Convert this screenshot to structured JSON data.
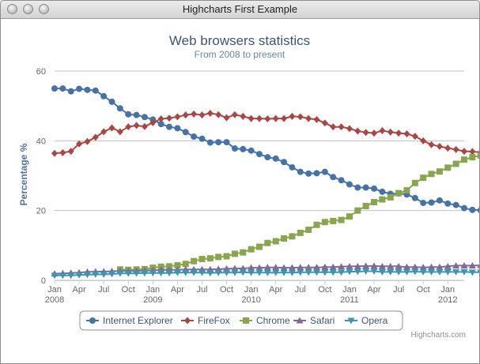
{
  "window": {
    "title": "Highcharts First Example"
  },
  "chart_data": {
    "type": "line",
    "title": "Web browsers statistics",
    "subtitle": "From 2008 to present",
    "xlabel": "",
    "ylabel": "Percentage %",
    "ylim": [
      0,
      60
    ],
    "yticks": [
      "0",
      "20",
      "40",
      "60"
    ],
    "x_tick_labels": [
      "Jan",
      "Apr",
      "Jul",
      "Oct",
      "Jan",
      "Apr",
      "Jul",
      "Oct",
      "Jan",
      "Apr",
      "Jul",
      "Oct",
      "Jan",
      "Apr",
      "Jul",
      "Oct",
      "Jan"
    ],
    "x_year_labels": [
      "2008",
      "2009",
      "2010",
      "2011",
      "2012"
    ],
    "x_start": "2008-01",
    "x_end": "2012-03",
    "grid": true,
    "legend_position": "bottom-center",
    "credits": "Highcharts.com",
    "series": [
      {
        "name": "Internet Explorer",
        "color": "#4572A7",
        "marker": "circle",
        "values": [
          55.0,
          55.0,
          54.2,
          54.9,
          54.6,
          54.4,
          52.8,
          51.2,
          49.3,
          47.6,
          47.4,
          46.8,
          46.1,
          44.8,
          44.0,
          43.6,
          42.5,
          41.2,
          40.6,
          39.5,
          39.6,
          39.6,
          37.8,
          37.6,
          37.2,
          36.2,
          35.3,
          34.9,
          33.9,
          32.4,
          31.1,
          30.6,
          30.7,
          31.1,
          29.6,
          28.7,
          27.5,
          26.6,
          26.6,
          26.3,
          25.4,
          24.8,
          24.9,
          24.6,
          23.6,
          22.2,
          22.3,
          22.9,
          22.0,
          21.6,
          20.7,
          20.2,
          20.1,
          19.6,
          19.1
        ]
      },
      {
        "name": "FireFox",
        "color": "#AA4643",
        "marker": "diamond",
        "values": [
          36.4,
          36.6,
          37.0,
          39.1,
          39.8,
          41.0,
          42.6,
          43.7,
          42.6,
          44.0,
          44.4,
          44.1,
          45.2,
          46.3,
          46.5,
          46.9,
          47.4,
          47.7,
          47.4,
          47.9,
          47.5,
          46.6,
          47.5,
          47.0,
          46.4,
          46.4,
          46.3,
          46.4,
          46.4,
          47.0,
          46.9,
          46.4,
          46.1,
          45.1,
          44.0,
          44.0,
          43.5,
          42.8,
          42.4,
          42.2,
          42.9,
          42.5,
          42.2,
          42.0,
          41.3,
          40.0,
          38.9,
          38.4,
          37.9,
          37.5,
          37.0,
          36.9,
          36.7,
          36.6,
          36.0
        ]
      },
      {
        "name": "Chrome",
        "color": "#89A54E",
        "marker": "square",
        "values": [
          null,
          null,
          null,
          null,
          null,
          null,
          null,
          null,
          3.1,
          3.0,
          3.1,
          3.2,
          3.6,
          3.9,
          4.0,
          4.3,
          4.7,
          5.5,
          6.1,
          6.3,
          6.7,
          6.9,
          7.6,
          8.0,
          8.9,
          9.6,
          10.7,
          11.2,
          12.0,
          12.6,
          13.6,
          14.5,
          15.9,
          16.7,
          17.0,
          17.3,
          18.3,
          20.0,
          21.3,
          22.4,
          23.2,
          23.8,
          25.0,
          25.8,
          27.9,
          29.4,
          30.5,
          31.2,
          32.3,
          33.4,
          34.6,
          35.3,
          35.8,
          36.5,
          37.2
        ]
      },
      {
        "name": "Safari",
        "color": "#80699B",
        "marker": "triangle",
        "values": [
          1.9,
          2.0,
          2.1,
          2.2,
          2.4,
          2.5,
          2.5,
          2.6,
          2.7,
          2.7,
          2.7,
          2.8,
          2.8,
          3.0,
          3.0,
          3.0,
          3.1,
          3.1,
          3.1,
          3.1,
          3.2,
          3.3,
          3.4,
          3.4,
          3.6,
          3.6,
          3.7,
          3.7,
          3.6,
          3.6,
          3.7,
          3.7,
          3.7,
          3.8,
          3.8,
          3.9,
          4.0,
          4.0,
          4.1,
          4.1,
          4.0,
          4.0,
          4.0,
          3.8,
          3.8,
          3.7,
          3.8,
          3.8,
          4.0,
          4.2,
          4.2,
          4.2,
          4.3,
          4.4,
          4.4
        ]
      },
      {
        "name": "Opera",
        "color": "#3D96AE",
        "marker": "triangle-down",
        "values": [
          1.4,
          1.4,
          1.4,
          1.5,
          1.6,
          1.7,
          1.7,
          1.8,
          2.0,
          2.0,
          2.0,
          2.1,
          2.1,
          2.1,
          2.1,
          2.2,
          2.2,
          2.2,
          2.2,
          2.1,
          2.2,
          2.2,
          2.2,
          2.3,
          2.2,
          2.2,
          2.2,
          2.2,
          2.2,
          2.2,
          2.3,
          2.3,
          2.3,
          2.3,
          2.3,
          2.3,
          2.5,
          2.5,
          2.6,
          2.6,
          2.4,
          2.4,
          2.4,
          2.4,
          2.5,
          2.4,
          2.4,
          2.4,
          2.4,
          2.4,
          2.4,
          2.3,
          2.3,
          2.3,
          2.3
        ]
      }
    ]
  }
}
